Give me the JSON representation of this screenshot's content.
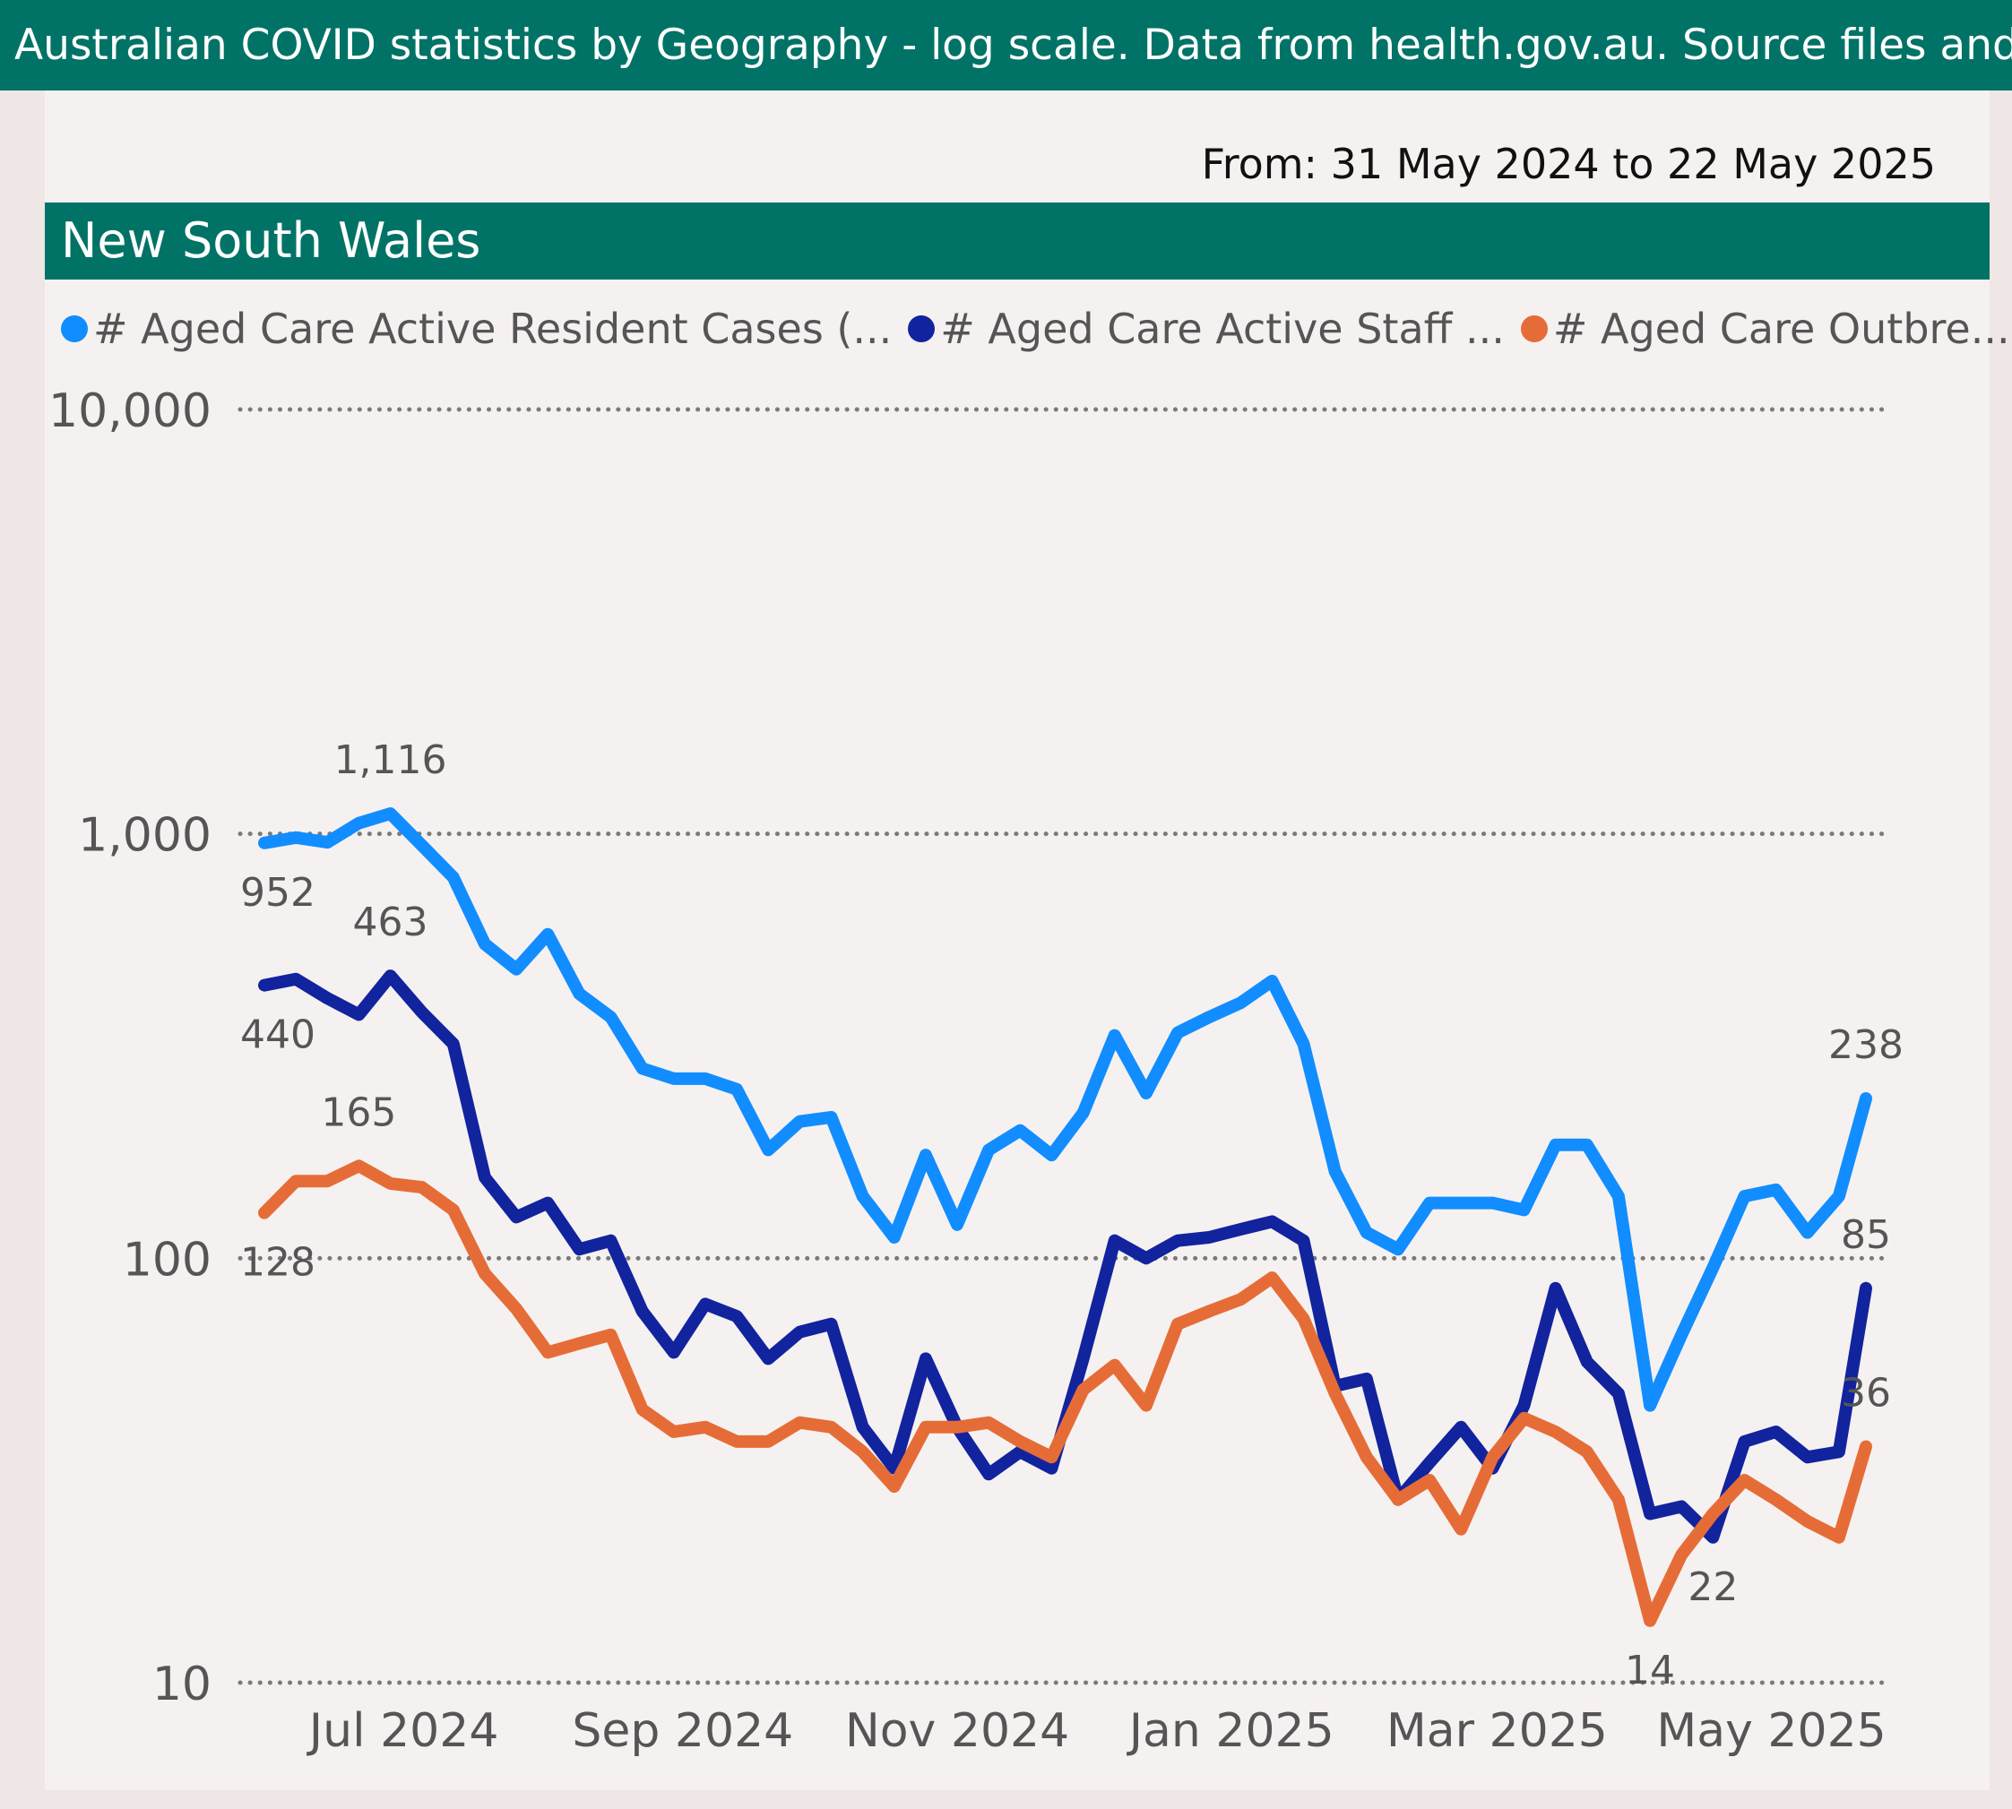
{
  "banner": {
    "text": "Australian COVID statistics by Geography - log scale. Data from health.gov.au. Source files and more i"
  },
  "date_range": "From: 31 May 2024 to 22 May 2025",
  "region": "New South Wales",
  "legend": [
    {
      "label": "# Aged Care Active Resident Cases (...",
      "color": "#118dff"
    },
    {
      "label": "# Aged Care Active Staff ...",
      "color": "#12239e"
    },
    {
      "label": "# Aged Care Outbre...",
      "color": "#e66c37"
    }
  ],
  "chart_data": {
    "type": "line",
    "y_scale": "log",
    "ylim": [
      10,
      10000
    ],
    "yticks": [
      10,
      100,
      1000,
      10000
    ],
    "ytick_labels": [
      "10",
      "100",
      "1,000",
      "10,000"
    ],
    "xlim": [
      "2024-05-31",
      "2025-05-22"
    ],
    "xticks": [
      "2024-07-01",
      "2024-09-01",
      "2024-11-01",
      "2025-01-01",
      "2025-03-01",
      "2025-05-01"
    ],
    "xtick_labels": [
      "Jul 2024",
      "Sep 2024",
      "Nov 2024",
      "Jan 2025",
      "Mar 2025",
      "May 2025"
    ],
    "grid": true,
    "legend_position": "top-left",
    "x": [
      "2024-05-31",
      "2024-06-07",
      "2024-06-14",
      "2024-06-21",
      "2024-06-28",
      "2024-07-05",
      "2024-07-12",
      "2024-07-19",
      "2024-07-26",
      "2024-08-02",
      "2024-08-09",
      "2024-08-16",
      "2024-08-23",
      "2024-08-30",
      "2024-09-06",
      "2024-09-13",
      "2024-09-20",
      "2024-09-27",
      "2024-10-04",
      "2024-10-11",
      "2024-10-18",
      "2024-10-25",
      "2024-11-01",
      "2024-11-08",
      "2024-11-15",
      "2024-11-22",
      "2024-11-29",
      "2024-12-06",
      "2024-12-13",
      "2024-12-20",
      "2024-12-27",
      "2025-01-03",
      "2025-01-10",
      "2025-01-17",
      "2025-01-24",
      "2025-01-31",
      "2025-02-07",
      "2025-02-14",
      "2025-02-21",
      "2025-02-28",
      "2025-03-07",
      "2025-03-14",
      "2025-03-21",
      "2025-03-28",
      "2025-04-04",
      "2025-04-11",
      "2025-04-18",
      "2025-04-25",
      "2025-05-02",
      "2025-05-09",
      "2025-05-16",
      "2025-05-22"
    ],
    "series": [
      {
        "name": "# Aged Care Active Resident Cases (...",
        "color": "#118dff",
        "values": [
          952,
          980,
          955,
          1060,
          1116,
          940,
          790,
          550,
          480,
          580,
          420,
          370,
          280,
          265,
          265,
          250,
          180,
          210,
          215,
          140,
          112,
          175,
          120,
          180,
          200,
          175,
          220,
          335,
          245,
          340,
          370,
          400,
          450,
          320,
          160,
          115,
          105,
          135,
          135,
          135,
          130,
          185,
          185,
          140,
          45,
          66,
          95,
          140,
          145,
          115,
          140,
          238
        ],
        "labels": [
          {
            "index": 0,
            "text": "952",
            "position": "below"
          },
          {
            "index": 4,
            "text": "1,116",
            "position": "above"
          },
          {
            "index": 51,
            "text": "238",
            "position": "above"
          }
        ]
      },
      {
        "name": "# Aged Care Active Staff ...",
        "color": "#12239e",
        "values": [
          440,
          455,
          410,
          375,
          463,
          380,
          320,
          155,
          125,
          135,
          105,
          110,
          75,
          60,
          78,
          73,
          58,
          67,
          70,
          40,
          32,
          58,
          40,
          31,
          35,
          32,
          58,
          110,
          100,
          110,
          112,
          117,
          122,
          110,
          50,
          52,
          27,
          33,
          40,
          32,
          45,
          85,
          57,
          48,
          25,
          26,
          22,
          37,
          39,
          34,
          35,
          85
        ],
        "labels": [
          {
            "index": 0,
            "text": "440",
            "position": "below"
          },
          {
            "index": 4,
            "text": "463",
            "position": "above"
          },
          {
            "index": 46,
            "text": "22",
            "position": "below"
          },
          {
            "index": 51,
            "text": "85",
            "position": "above"
          }
        ]
      },
      {
        "name": "# Aged Care Outbre...",
        "color": "#e66c37",
        "values": [
          128,
          152,
          152,
          165,
          150,
          147,
          130,
          92,
          76,
          60,
          63,
          66,
          44,
          39,
          40,
          37,
          37,
          41,
          40,
          35,
          29,
          40,
          40,
          41,
          37,
          34,
          49,
          56,
          45,
          70,
          75,
          80,
          90,
          72,
          48,
          34,
          27,
          30,
          23,
          34,
          42,
          39,
          35,
          27,
          14,
          20,
          25,
          30,
          27,
          24,
          22,
          36
        ],
        "labels": [
          {
            "index": 0,
            "text": "128",
            "position": "below"
          },
          {
            "index": 3,
            "text": "165",
            "position": "above"
          },
          {
            "index": 44,
            "text": "14",
            "position": "below"
          },
          {
            "index": 51,
            "text": "36",
            "position": "above"
          }
        ]
      }
    ]
  }
}
